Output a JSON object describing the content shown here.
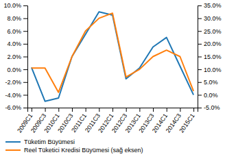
{
  "chart_data": {
    "type": "line",
    "categories": [
      "2009C1",
      "2009C3",
      "2010C1",
      "2010C3",
      "2011C1",
      "2011C3",
      "2012C1",
      "2012C3",
      "2013C1",
      "2013C3",
      "2014C1",
      "2014C3",
      "2015C1"
    ],
    "series": [
      {
        "name": "Tüketim Büyümesi",
        "values": [
          0.3,
          -5.0,
          -4.5,
          2.0,
          5.5,
          9.0,
          8.5,
          -1.5,
          0.2,
          3.5,
          5.0,
          0.5,
          -4.0
        ]
      },
      {
        "name": "Reel Tüketici Kredisi Büyümesi (sağ eksen)",
        "axis": "y2",
        "values": [
          10.5,
          10.5,
          1.0,
          15.0,
          25.0,
          30.0,
          32.0,
          7.0,
          10.0,
          15.0,
          17.5,
          15.0,
          1.5
        ]
      }
    ],
    "ylim": [
      -6.0,
      10.0
    ],
    "yticks": [
      {
        "value": -6.0,
        "label": "-6.0%"
      },
      {
        "value": -4.0,
        "label": "-4.0%"
      },
      {
        "value": -2.0,
        "label": "-2.0%"
      },
      {
        "value": 0.0,
        "label": "0.0%"
      },
      {
        "value": 2.0,
        "label": "2.0%"
      },
      {
        "value": 4.0,
        "label": "4.0%"
      },
      {
        "value": 6.0,
        "label": "6.0%"
      },
      {
        "value": 8.0,
        "label": "8.0%"
      },
      {
        "value": 10.0,
        "label": "10.0%"
      }
    ],
    "y2lim": [
      -5.0,
      35.0
    ],
    "y2ticks": [
      {
        "value": -5.0,
        "label": "-5.0%"
      },
      {
        "value": 0.0,
        "label": "0.0%"
      },
      {
        "value": 5.0,
        "label": "5.0%"
      },
      {
        "value": 10.0,
        "label": "10.0%"
      },
      {
        "value": 15.0,
        "label": "15.0%"
      },
      {
        "value": 20.0,
        "label": "20.0%"
      },
      {
        "value": 25.0,
        "label": "25.0%"
      },
      {
        "value": 30.0,
        "label": "30.0%"
      },
      {
        "value": 35.0,
        "label": "35.0%"
      }
    ],
    "grid": false
  }
}
